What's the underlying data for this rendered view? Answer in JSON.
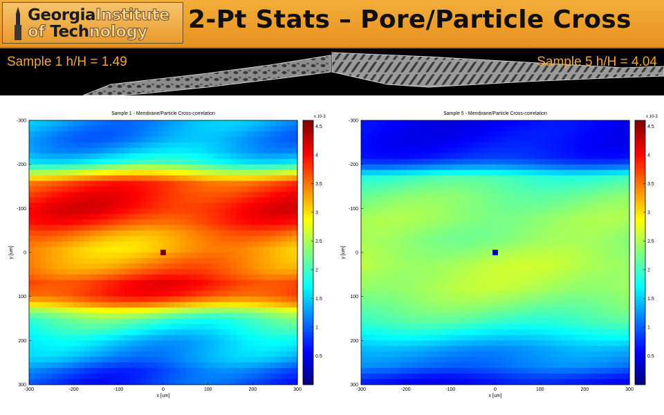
{
  "header": {
    "logo": {
      "line1_dark": "Georgia",
      "line1_light": "Institute",
      "line2_light": "of ",
      "line2_dark": "Tech",
      "line2_light2": "nology"
    },
    "title": "2-Pt Stats – Pore/Particle Cross"
  },
  "samples": [
    {
      "label": "Sample 1 h/H = 1.49"
    },
    {
      "label": "Sample 5 h/H = 4.04"
    }
  ],
  "colormap": "jet",
  "chart_data": [
    {
      "type": "heatmap",
      "title": "Sample 1 - Membrane/Particle Cross-correlation",
      "xlabel": "x [um]",
      "ylabel": "y [um]",
      "xlim": [
        -300,
        300
      ],
      "ylim": [
        -300,
        300
      ],
      "x_ticks": [
        -300,
        -200,
        -100,
        0,
        100,
        200,
        300
      ],
      "y_ticks": [
        -300,
        -200,
        -100,
        0,
        100,
        200,
        300
      ],
      "colorbar": {
        "min": 0,
        "max": 4.6,
        "exponent": "x 10-3",
        "ticks": [
          0.5,
          1,
          1.5,
          2,
          2.5,
          3,
          3.5,
          4,
          4.5
        ]
      },
      "y_profile": [
        [
          -300,
          1.3
        ],
        [
          -260,
          1.2
        ],
        [
          -230,
          1.4
        ],
        [
          -205,
          1.8
        ],
        [
          -190,
          2.4
        ],
        [
          -175,
          3.0
        ],
        [
          -160,
          3.7
        ],
        [
          -130,
          3.9
        ],
        [
          -100,
          4.0
        ],
        [
          -70,
          3.8
        ],
        [
          -40,
          3.4
        ],
        [
          -10,
          3.2
        ],
        [
          10,
          3.3
        ],
        [
          40,
          3.5
        ],
        [
          70,
          3.9
        ],
        [
          95,
          3.8
        ],
        [
          115,
          3.4
        ],
        [
          130,
          2.7
        ],
        [
          150,
          2.1
        ],
        [
          175,
          1.8
        ],
        [
          200,
          1.5
        ],
        [
          240,
          1.3
        ],
        [
          270,
          0.95
        ],
        [
          300,
          0.85
        ]
      ],
      "diagonal_modulation": 0.25,
      "center_value": 4.5
    },
    {
      "type": "heatmap",
      "title": "Sample 5 - Membrane/Particle Cross-correlation",
      "xlabel": "x [um]",
      "ylabel": "y [um]",
      "xlim": [
        -300,
        300
      ],
      "ylim": [
        -300,
        300
      ],
      "x_ticks": [
        -300,
        -200,
        -100,
        0,
        100,
        200,
        300
      ],
      "y_ticks": [
        -300,
        -200,
        -100,
        0,
        100,
        200,
        300
      ],
      "colorbar": {
        "min": 0,
        "max": 4.6,
        "exponent": "x 10-3",
        "ticks": [
          0.5,
          1,
          1.5,
          2,
          2.5,
          3,
          3.5,
          4,
          4.5
        ]
      },
      "y_profile": [
        [
          -300,
          0.55
        ],
        [
          -250,
          0.6
        ],
        [
          -220,
          0.7
        ],
        [
          -200,
          1.0
        ],
        [
          -185,
          1.5
        ],
        [
          -170,
          2.0
        ],
        [
          -130,
          2.25
        ],
        [
          -80,
          2.4
        ],
        [
          -30,
          2.35
        ],
        [
          0,
          2.45
        ],
        [
          30,
          2.55
        ],
        [
          80,
          2.5
        ],
        [
          120,
          2.3
        ],
        [
          160,
          2.0
        ],
        [
          185,
          1.7
        ],
        [
          220,
          1.3
        ],
        [
          260,
          1.1
        ],
        [
          280,
          0.8
        ],
        [
          300,
          0.6
        ]
      ],
      "diagonal_modulation": 0.12,
      "center_value": 0.5
    }
  ]
}
